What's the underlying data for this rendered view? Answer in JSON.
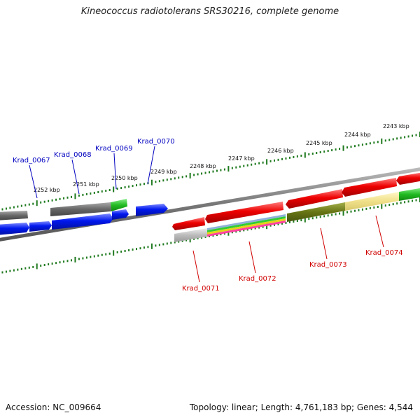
{
  "title": "Kineococcus radiotolerans SRS30216, complete genome",
  "footer": {
    "accession_label": "Accession:",
    "accession": "NC_009664",
    "summary": "Topology: linear; Length: 4,761,183 bp; Genes: 4,544"
  },
  "colors": {
    "backbone": "#888888",
    "tick": "#1f7a1f",
    "forward_label": "#0000c0",
    "reverse_label": "#d00000",
    "blue": "#0020ee",
    "red": "#ee0000",
    "grey": "#777777",
    "green": "#33cc33",
    "olive": "#6f7f1a",
    "yellow": "#f2e48a",
    "lightgrey": "#bdbdbd"
  },
  "scale_ticks": [
    "2252 kbp",
    "2251 kbp",
    "2250 kbp",
    "2249 kbp",
    "2248 kbp",
    "2247 kbp",
    "2246 kbp",
    "2245 kbp",
    "2244 kbp",
    "2243 kbp"
  ],
  "forward_genes": [
    "Krad_0067",
    "Krad_0068",
    "Krad_0069",
    "Krad_0070"
  ],
  "reverse_genes": [
    "Krad_0071",
    "Krad_0072",
    "Krad_0073",
    "Krad_0074"
  ]
}
